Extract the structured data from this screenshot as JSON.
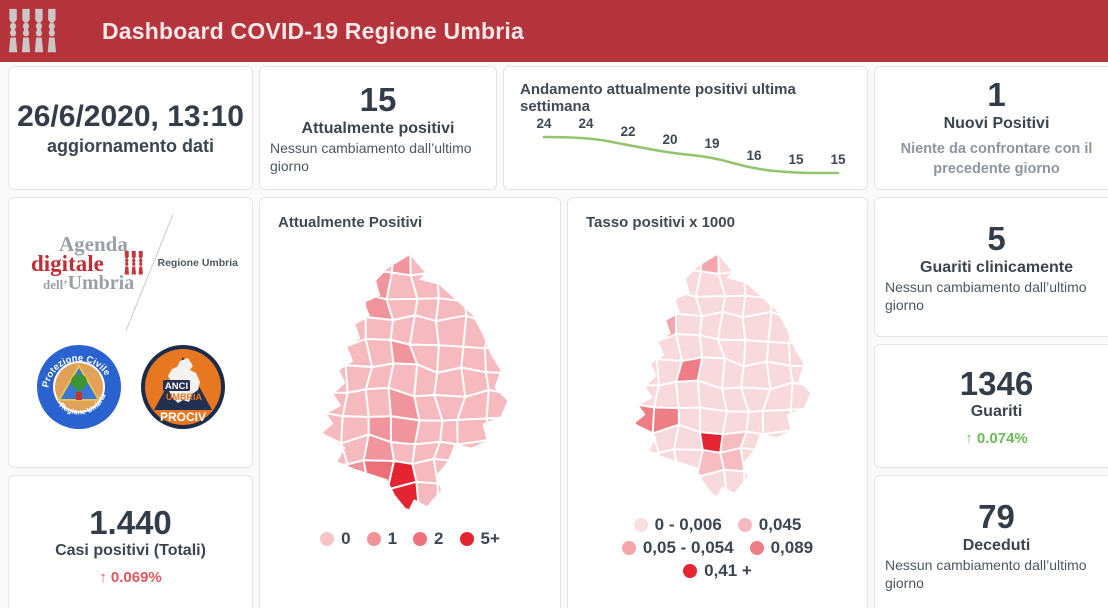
{
  "header": {
    "title": "Dashboard COVID-19 Regione Umbria",
    "logo": "ceri-regione-umbria-icon",
    "bg": "#b5343c"
  },
  "cards": {
    "update": {
      "value": "26/6/2020, 13:10",
      "label": "aggiornamento dati"
    },
    "attuali": {
      "value": "15",
      "label": "Attualmente positivi",
      "note": "Nessun cambiamento dall’ultimo giorno"
    },
    "nuovi": {
      "value": "1",
      "label": "Nuovi Positivi",
      "note": "Niente da confrontare con il precedente giorno"
    },
    "guariti_clinicamente": {
      "value": "5",
      "label": "Guariti clinicamente",
      "note": "Nessun cambiamento dall’ultimo giorno"
    },
    "guariti": {
      "value": "1346",
      "label": "Guariti",
      "delta": "↑  0.074%"
    },
    "deceduti": {
      "value": "79",
      "label": "Deceduti",
      "note": "Nessun cambiamento dall’ultimo giorno"
    },
    "casi": {
      "value": "1.440",
      "label": "Casi positivi (Totali)",
      "delta": "↑  0.069%"
    }
  },
  "logos": {
    "agenda": {
      "line1": "Agenda",
      "line2": "digitale",
      "line3_pre": "dell’",
      "line3": "Umbria"
    },
    "regione_umbria": "Regione Umbria",
    "protezione_civile": {
      "top": "Protezione Civile",
      "bottom": "Regione Umbria"
    },
    "anci": {
      "l1": "ANCI",
      "l2": "UMBRIA",
      "l3": "PROCIV"
    }
  },
  "maps": [
    {
      "title": "Attualmente Positivi",
      "palette": [
        "#f6b9be",
        "#f0959c",
        "#ec7078",
        "#e42531"
      ],
      "legend": [
        {
          "label": "0",
          "color": "#f6c3c7"
        },
        {
          "label": "1",
          "color": "#f1939a"
        },
        {
          "label": "2",
          "color": "#ee7078"
        },
        {
          "label": "5+",
          "color": "#e42531"
        }
      ],
      "legend_rows": [
        [
          0,
          1,
          2,
          3
        ]
      ],
      "cells": [
        {
          "c": 4,
          "r": 0,
          "l": 1
        },
        {
          "c": 2,
          "r": 1,
          "l": 2
        },
        {
          "c": 3,
          "r": 1,
          "l": 1
        },
        {
          "c": 1,
          "r": 2,
          "l": 2
        },
        {
          "c": 2,
          "r": 2,
          "l": 2
        },
        {
          "c": 3,
          "r": 2,
          "l": 1
        },
        {
          "c": 1,
          "r": 3,
          "l": 1
        },
        {
          "c": 4,
          "r": 4,
          "l": 1
        },
        {
          "c": 4,
          "r": 6,
          "l": 1
        },
        {
          "c": 3,
          "r": 7,
          "l": 1
        },
        {
          "c": 4,
          "r": 7,
          "l": 1
        },
        {
          "c": 3,
          "r": 8,
          "l": 1
        },
        {
          "c": 1,
          "r": 9,
          "l": 1
        },
        {
          "c": 2,
          "r": 9,
          "l": 1
        },
        {
          "c": 3,
          "r": 9,
          "l": 2
        },
        {
          "c": 4,
          "r": 9,
          "l": 3
        },
        {
          "c": 4,
          "r": 10,
          "l": 3
        }
      ]
    },
    {
      "title": "Tasso positivi x 1000",
      "palette": [
        "#f9dadc",
        "#f6bcc0",
        "#f3a6ab",
        "#ee7d86",
        "#e52532"
      ],
      "legend": [
        {
          "label": "0 - 0,006",
          "color": "#fadfe1"
        },
        {
          "label": "0,045",
          "color": "#f6b9bd"
        },
        {
          "label": "0,05 - 0,054",
          "color": "#f4a4aa"
        },
        {
          "label": "0,089",
          "color": "#ef7d86"
        },
        {
          "label": "0,41 +",
          "color": "#e52532"
        }
      ],
      "legend_rows": [
        [
          0,
          1
        ],
        [
          2,
          3
        ],
        [
          4
        ]
      ],
      "cells": [
        {
          "c": 4,
          "r": 0,
          "l": 2
        },
        {
          "c": 2,
          "r": 1,
          "l": 3
        },
        {
          "c": 1,
          "r": 2,
          "l": 2
        },
        {
          "c": 2,
          "r": 2,
          "l": 3
        },
        {
          "c": 2,
          "r": 3,
          "l": 2
        },
        {
          "c": 3,
          "r": 5,
          "l": 3
        },
        {
          "c": 1,
          "r": 7,
          "l": 3
        },
        {
          "c": 2,
          "r": 7,
          "l": 3
        },
        {
          "c": 4,
          "r": 8,
          "l": 4
        },
        {
          "c": 5,
          "r": 8,
          "l": 1
        },
        {
          "c": 5,
          "r": 9,
          "l": 1
        },
        {
          "c": 4,
          "r": 9,
          "l": 1
        }
      ]
    }
  ],
  "chart_data": [
    {
      "type": "line",
      "title": "Andamento attualmente positivi ultima settimana",
      "values": [
        24,
        24,
        22,
        20,
        19,
        16,
        15,
        15
      ],
      "line_color": "#92c46d",
      "data_labels": true,
      "axes_hidden": true
    },
    {
      "type": "heatmap",
      "subtype": "choropleth-map",
      "title": "Attualmente Positivi",
      "legend_entries": [
        "0",
        "1",
        "2",
        "5+"
      ],
      "legend_position": "bottom"
    },
    {
      "type": "heatmap",
      "subtype": "choropleth-map",
      "title": "Tasso positivi x 1000",
      "legend_entries": [
        "0 - 0,006",
        "0,045",
        "0,05 - 0,054",
        "0,089",
        "0,41 +"
      ],
      "legend_position": "bottom"
    }
  ]
}
